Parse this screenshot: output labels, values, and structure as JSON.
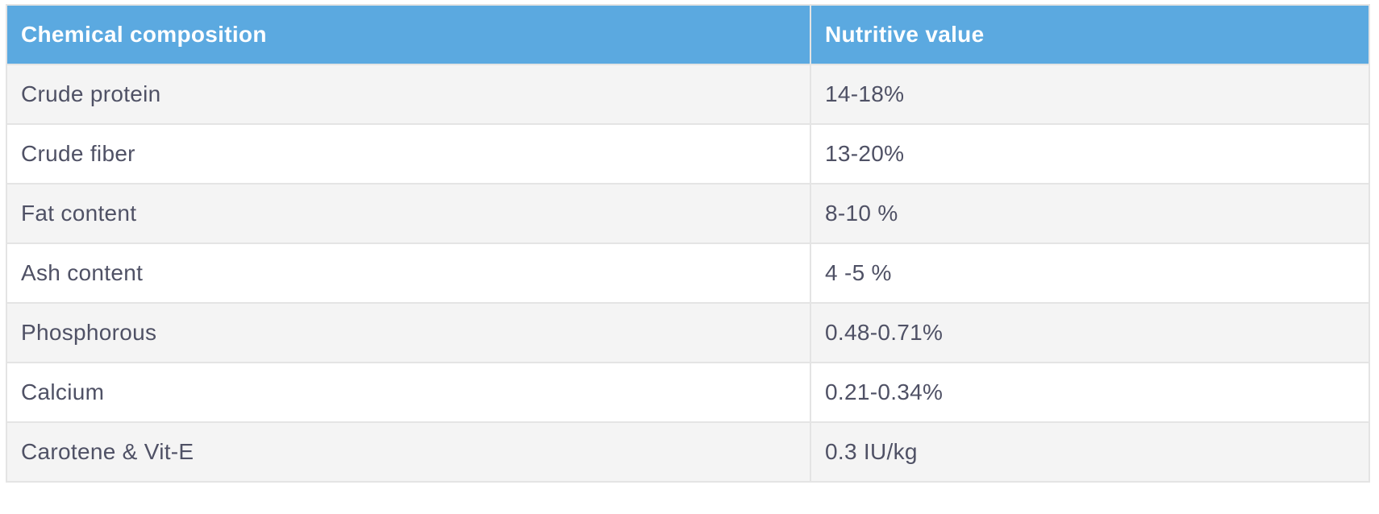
{
  "table": {
    "columns": [
      {
        "label": "Chemical composition"
      },
      {
        "label": "Nutritive value"
      }
    ],
    "rows": [
      {
        "composition": "Crude protein",
        "value": "14-18%"
      },
      {
        "composition": "Crude fiber",
        "value": "13-20%"
      },
      {
        "composition": "Fat content",
        "value": "8-10 %"
      },
      {
        "composition": "Ash content",
        "value": "4 -5 %"
      },
      {
        "composition": "Phosphorous",
        "value": "0.48-0.71%"
      },
      {
        "composition": "Calcium",
        "value": "0.21-0.34%"
      },
      {
        "composition": "Carotene & Vit-E",
        "value": "0.3 IU/kg"
      }
    ],
    "colors": {
      "header_bg": "#5ba9e0",
      "header_text": "#ffffff",
      "row_bg": "#ffffff",
      "row_alt_bg": "#f4f4f4",
      "cell_text": "#4f5165",
      "border": "#e4e4e4",
      "border_outer": "#d9d9d9"
    }
  }
}
